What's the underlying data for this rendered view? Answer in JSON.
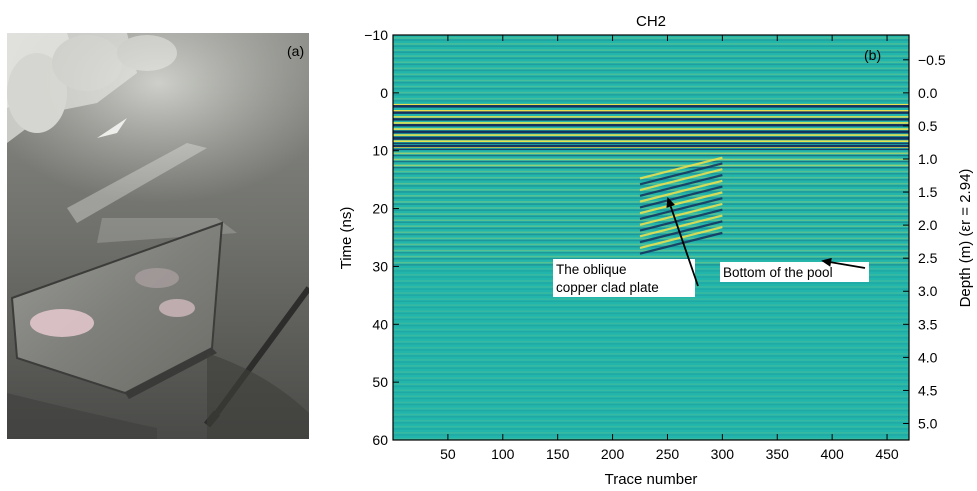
{
  "photo_panel": {
    "label": "(a)",
    "description_icon": "photo-of-oblique-copper-plate-in-sand-pool"
  },
  "chart_data": {
    "type": "heatmap",
    "title": "CH2",
    "panel_label": "(b)",
    "xlabel": "Trace number",
    "ylabel": "Time (ns)",
    "y2label": "Depth (m) (εr = 2.94)",
    "xlim": [
      0,
      470
    ],
    "ylim": [
      -10,
      60
    ],
    "y_inverted": true,
    "xticks": [
      "50",
      "100",
      "150",
      "200",
      "250",
      "300",
      "350",
      "400",
      "450"
    ],
    "xtick_values": [
      50,
      100,
      150,
      200,
      250,
      300,
      350,
      400,
      450
    ],
    "yticks": [
      "−10",
      "0",
      "10",
      "20",
      "30",
      "40",
      "50",
      "60"
    ],
    "ytick_values": [
      -10,
      0,
      10,
      20,
      30,
      40,
      50,
      60
    ],
    "depth_ticks": [
      "−0.5",
      "0.0",
      "0.5",
      "1.0",
      "1.5",
      "2.0",
      "2.5",
      "3.0",
      "3.5",
      "4.0",
      "4.5",
      "5.0"
    ],
    "depth_tick_values": [
      -0.5,
      0.0,
      0.5,
      1.0,
      1.5,
      2.0,
      2.5,
      3.0,
      3.5,
      4.0,
      4.5,
      5.0
    ],
    "depth_to_time_ns_per_m": 11.43,
    "annotations": [
      {
        "text_line1": "The oblique",
        "text_line2": "copper clad plate",
        "target": {
          "x": 250,
          "y": 18
        }
      },
      {
        "text_line1": "Bottom of the pool",
        "text_line2": "",
        "target": {
          "x": 390,
          "y": 29
        }
      }
    ],
    "colors": {
      "background": "#22b5ac",
      "positive": "#f2e34c",
      "negative": "#14305e"
    }
  }
}
